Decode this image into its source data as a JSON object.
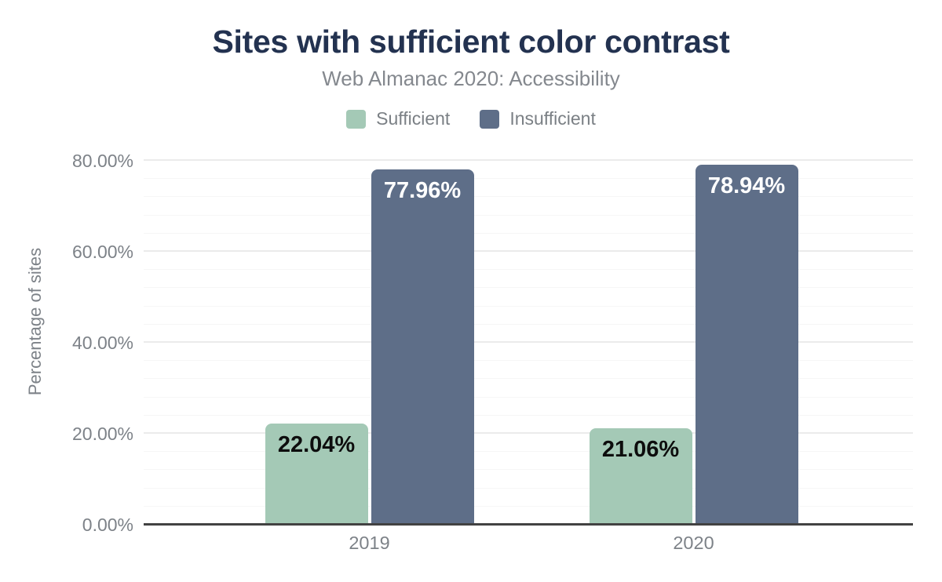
{
  "chart_data": {
    "type": "bar",
    "title": "Sites with sufficient color contrast",
    "subtitle": "Web Almanac 2020: Accessibility",
    "ylabel": "Percentage of sites",
    "categories": [
      "2019",
      "2020"
    ],
    "series": [
      {
        "name": "Sufficient",
        "values": [
          22.04,
          21.06
        ],
        "labels": [
          "22.04%",
          "21.06%"
        ],
        "color": "#a4c9b6",
        "label_color": "#0d0d0d"
      },
      {
        "name": "Insufficient",
        "values": [
          77.96,
          78.94
        ],
        "labels": [
          "77.96%",
          "78.94%"
        ],
        "color": "#5e6e88",
        "label_color": "#ffffff"
      }
    ],
    "y_axis": {
      "ticks": [
        {
          "value": 0,
          "label": "0.00%"
        },
        {
          "value": 20,
          "label": "20.00%"
        },
        {
          "value": 40,
          "label": "40.00%"
        },
        {
          "value": 60,
          "label": "60.00%"
        },
        {
          "value": 80,
          "label": "80.00%"
        }
      ],
      "ylim": [
        0,
        80
      ],
      "minor_gridline_step": 4
    },
    "legend_position": "top",
    "grid": true,
    "colors": {
      "title": "#233250",
      "subtitle_text": "#84888e",
      "axis_text": "#7d8288",
      "axis_line": "#424242",
      "major_gridline": "#ebebeb",
      "minor_gridline": "#f6f6f6",
      "background": "#ffffff"
    }
  }
}
